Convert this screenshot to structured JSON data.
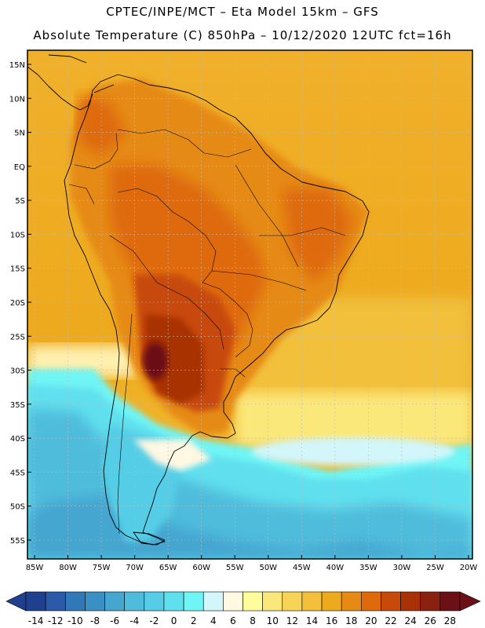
{
  "title_line1": "CPTEC/INPE/MCT –  Eta Model 15km – GFS",
  "title_line2": "Absolute Temperature (C) 850hPa – 10/12/2020 12UTC fct=16h",
  "lat_labels": [
    "15N",
    "10N",
    "5N",
    "EQ",
    "5S",
    "10S",
    "15S",
    "20S",
    "25S",
    "30S",
    "35S",
    "40S",
    "45S",
    "50S",
    "55S"
  ],
  "lat_values": [
    15,
    10,
    5,
    0,
    -5,
    -10,
    -15,
    -20,
    -25,
    -30,
    -35,
    -40,
    -45,
    -50,
    -55
  ],
  "lon_labels": [
    "85W",
    "80W",
    "75W",
    "70W",
    "65W",
    "60W",
    "55W",
    "50W",
    "45W",
    "40W",
    "35W",
    "30W",
    "25W",
    "20W"
  ],
  "lon_values": [
    -85,
    -80,
    -75,
    -70,
    -65,
    -60,
    -55,
    -50,
    -45,
    -40,
    -35,
    -30,
    -25,
    -20
  ],
  "colorbar": {
    "colors": [
      "#1f3f8f",
      "#2a5aa8",
      "#3178b8",
      "#3a8fc4",
      "#45a6d0",
      "#4fbcdc",
      "#55cde6",
      "#60e0ee",
      "#6ff5f5",
      "#d2f6fa",
      "#fff8e2",
      "#fffc9c",
      "#fbe87a",
      "#f7d456",
      "#f2c03a",
      "#eeaa1d",
      "#e68a14",
      "#de6a0c",
      "#c84a08",
      "#a83206",
      "#8a2010",
      "#6c1018"
    ],
    "tick_labels": [
      "-14",
      "-12",
      "-10",
      "-8",
      "-6",
      "-4",
      "-2",
      "0",
      "2",
      "4",
      "6",
      "8",
      "10",
      "12",
      "14",
      "16",
      "18",
      "20",
      "22",
      "24",
      "26",
      "28"
    ]
  }
}
